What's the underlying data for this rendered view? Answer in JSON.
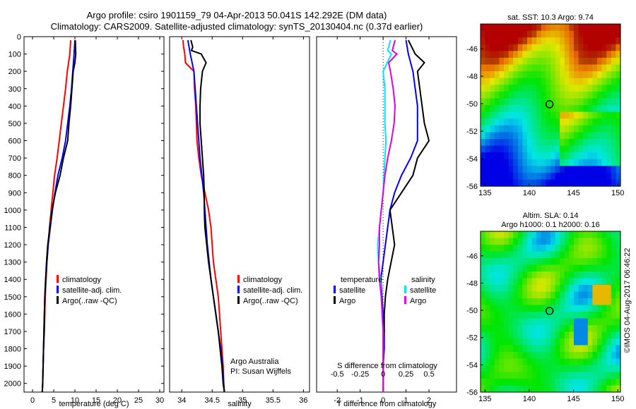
{
  "title": {
    "line1": "Argo profile: csiro 1901159_79 04-Apr-2013 50.041S 142.292E (DM data)",
    "line2": "Climatology: CARS2009. Satellite-adjusted climatology: synTS_20130404.nc (0.37d earlier)"
  },
  "colors": {
    "climatology": "#ff0000",
    "satellite": "#0000ff",
    "argo": "#000000",
    "sat_salinity": "#00e5ff",
    "argo_salinity": "#e000e0"
  },
  "credit": "©IMOS 04-Aug-2017 06:46:22",
  "chart_data": [
    {
      "id": "temperature",
      "type": "line",
      "xlabel": "temperature (deg C)",
      "ylabel": "",
      "xlim": [
        -2,
        31
      ],
      "ylim": [
        2050,
        0
      ],
      "xticks": [
        0,
        5,
        10,
        15,
        20,
        25,
        30
      ],
      "yticks": [
        0,
        100,
        200,
        300,
        400,
        500,
        600,
        700,
        800,
        900,
        1000,
        1100,
        1200,
        1300,
        1400,
        1500,
        1600,
        1700,
        1800,
        1900,
        2000
      ],
      "legend": [
        "climatology",
        "satellite-adj. clim.",
        "Argo(..raw -QC)"
      ],
      "legend_position": "lower-center",
      "series": [
        {
          "name": "climatology",
          "color": "#ff0000",
          "depth": [
            20,
            100,
            200,
            300,
            400,
            500,
            600,
            700,
            800,
            900,
            1000,
            1100,
            1200,
            1300,
            1400,
            1500,
            1600,
            1700,
            1800,
            1900,
            2000,
            2050
          ],
          "values": [
            9.0,
            8.8,
            8.2,
            7.8,
            7.3,
            6.8,
            6.3,
            5.8,
            5.2,
            4.8,
            4.4,
            4.0,
            3.7,
            3.4,
            3.2,
            3.0,
            2.9,
            2.8,
            2.6,
            2.5,
            2.4,
            2.3
          ]
        },
        {
          "name": "satellite-adj. clim.",
          "color": "#0000ff",
          "depth": [
            20,
            100,
            200,
            300,
            400,
            500,
            600,
            700,
            800,
            900,
            1000,
            1100,
            1200,
            1300,
            1400,
            1500,
            1600,
            1700,
            1800,
            1900,
            2000,
            2050
          ],
          "values": [
            10.0,
            9.8,
            9.5,
            9.2,
            8.8,
            8.3,
            7.8,
            7.0,
            6.0,
            5.3,
            4.7,
            4.2,
            3.7,
            3.4,
            3.1,
            2.9,
            2.8,
            2.7,
            2.6,
            2.5,
            2.4,
            2.3
          ]
        },
        {
          "name": "Argo(..raw -QC)",
          "color": "#000000",
          "depth": [
            20,
            100,
            150,
            200,
            300,
            400,
            500,
            600,
            700,
            800,
            900,
            1000,
            1100,
            1200,
            1300,
            1400,
            1500,
            1600,
            1700,
            1800,
            1900,
            2000,
            2050
          ],
          "values": [
            10.1,
            10.2,
            10.0,
            9.6,
            9.3,
            9.0,
            8.6,
            8.3,
            7.3,
            6.5,
            5.4,
            4.6,
            4.1,
            3.6,
            3.3,
            3.1,
            2.9,
            2.8,
            2.7,
            2.6,
            2.5,
            2.4,
            2.3
          ]
        }
      ]
    },
    {
      "id": "salinity",
      "type": "line",
      "xlabel": "salinity",
      "ylabel": "",
      "xlim": [
        33.8,
        36.1
      ],
      "ylim": [
        2050,
        0
      ],
      "xticks": [
        34,
        34.5,
        35,
        35.5,
        36
      ],
      "legend": [
        "climatology",
        "satellite-adj. clim.",
        "Argo(..raw -QC)"
      ],
      "legend_position": "lower-center",
      "annotation": [
        "Argo Australia",
        "PI: Susan Wijffels"
      ],
      "series": [
        {
          "name": "climatology",
          "color": "#ff0000",
          "depth": [
            20,
            60,
            100,
            150,
            200,
            300,
            400,
            500,
            600,
            700,
            800,
            900,
            1000,
            1100,
            1200,
            1300,
            1400,
            1500,
            1600,
            1700,
            1800,
            1900,
            2000,
            2050
          ],
          "values": [
            34.02,
            34.03,
            34.05,
            34.06,
            34.2,
            34.21,
            34.23,
            34.24,
            34.25,
            34.28,
            34.32,
            34.38,
            34.44,
            34.48,
            34.5,
            34.52,
            34.56,
            34.6,
            34.62,
            34.64,
            34.66,
            34.68,
            34.69,
            34.7
          ]
        },
        {
          "name": "satellite-adj. clim.",
          "color": "#0000ff",
          "depth": [
            20,
            60,
            100,
            150,
            200,
            300,
            400,
            500,
            600,
            700,
            800,
            900,
            1000,
            1100,
            1200,
            1300,
            1400,
            1500,
            1600,
            1700,
            1800,
            1900,
            2000,
            2050
          ],
          "values": [
            34.1,
            34.12,
            34.14,
            34.17,
            34.2,
            34.22,
            34.24,
            34.26,
            34.28,
            34.3,
            34.33,
            34.36,
            34.38,
            34.4,
            34.42,
            34.45,
            34.48,
            34.52,
            34.56,
            34.6,
            34.64,
            34.67,
            34.69,
            34.7
          ]
        },
        {
          "name": "Argo(..raw -QC)",
          "color": "#000000",
          "depth": [
            20,
            60,
            80,
            100,
            150,
            200,
            300,
            400,
            500,
            600,
            700,
            800,
            900,
            1000,
            1100,
            1200,
            1300,
            1400,
            1500,
            1600,
            1700,
            1800,
            1900,
            2000,
            2050
          ],
          "values": [
            34.15,
            34.18,
            34.16,
            34.32,
            34.4,
            34.34,
            34.31,
            34.3,
            34.3,
            34.32,
            34.34,
            34.36,
            34.37,
            34.37,
            34.38,
            34.41,
            34.44,
            34.48,
            34.52,
            34.56,
            34.6,
            34.63,
            34.66,
            34.68,
            34.7
          ]
        }
      ]
    },
    {
      "id": "difference",
      "type": "line",
      "xlabel": "T difference from climatology",
      "xlabel_top": "S difference from climatology",
      "xlim": [
        -2.9,
        3.2
      ],
      "ylim": [
        2050,
        0
      ],
      "xticks": [
        -2,
        -1,
        0,
        1,
        2
      ],
      "xticks_s": [
        -0.5,
        -0.25,
        0,
        0.25,
        0.5
      ],
      "legend": {
        "temperature": "temperature",
        "salinity": "salinity",
        "satellite": "satellite",
        "argo": "Argo"
      },
      "legend_position": "lower-center",
      "series": [
        {
          "name": "T satellite",
          "color": "#0000ff",
          "depth": [
            20,
            100,
            200,
            300,
            400,
            500,
            600,
            700,
            800,
            900,
            1000,
            1100,
            1200,
            1300,
            1400,
            1500,
            1600,
            1700,
            1800,
            1900,
            2000,
            2050
          ],
          "values": [
            1.0,
            1.1,
            1.3,
            1.4,
            1.5,
            1.5,
            1.5,
            1.2,
            0.8,
            0.5,
            0.3,
            0.2,
            0.1,
            0.0,
            -0.1,
            -0.05,
            0.0,
            0.05,
            0.05,
            0.0,
            0.0,
            0.0
          ]
        },
        {
          "name": "T Argo",
          "color": "#000000",
          "depth": [
            20,
            100,
            150,
            200,
            300,
            400,
            500,
            600,
            700,
            800,
            900,
            1000,
            1100,
            1200,
            1300,
            1400,
            1500,
            1600,
            1700,
            1800,
            1900,
            2000,
            2050
          ],
          "values": [
            1.1,
            1.4,
            1.8,
            1.5,
            1.6,
            1.7,
            1.8,
            2.0,
            1.5,
            1.3,
            0.8,
            0.3,
            0.4,
            0.5,
            0.35,
            0.2,
            0.1,
            0.05,
            0.05,
            0.0,
            0.0,
            0.0,
            0.0
          ]
        },
        {
          "name": "S satellite",
          "color": "#00e5ff",
          "depth": [
            20,
            80,
            100,
            200,
            300,
            400,
            500,
            600,
            700,
            800,
            900,
            1000,
            1100,
            1200,
            1300,
            1400,
            1500,
            1600,
            1700,
            1800,
            1900,
            2000,
            2050
          ],
          "values": [
            0.08,
            0.05,
            0.09,
            0.0,
            0.02,
            0.02,
            0.02,
            0.03,
            0.02,
            0.01,
            0.0,
            -0.02,
            -0.04,
            -0.06,
            -0.05,
            -0.03,
            -0.02,
            -0.01,
            0.0,
            0.0,
            0.0,
            0.0,
            0.0
          ]
        },
        {
          "name": "S Argo",
          "color": "#e000e0",
          "depth": [
            20,
            80,
            100,
            150,
            200,
            300,
            400,
            500,
            600,
            700,
            800,
            900,
            1000,
            1100,
            1200,
            1300,
            1400,
            1500,
            1600,
            1700,
            1800,
            1900,
            2000,
            2050
          ],
          "values": [
            0.13,
            0.1,
            0.15,
            0.06,
            0.08,
            0.11,
            0.13,
            0.12,
            0.09,
            0.05,
            0.02,
            0.0,
            -0.02,
            -0.04,
            -0.04,
            -0.05,
            -0.04,
            -0.02,
            -0.01,
            0.0,
            0.0,
            0.0,
            0.0,
            0.0
          ]
        }
      ]
    },
    {
      "id": "sst-map",
      "type": "heatmap",
      "title": "sat. SST: 10.3 Argo: 9.74",
      "xlim": [
        134.5,
        150.3
      ],
      "ylim": [
        -56,
        -44.2
      ],
      "xticks": [
        135,
        140,
        145,
        150
      ],
      "yticks": [
        -46,
        -48,
        -50,
        -52,
        -54,
        -56
      ],
      "marker": {
        "lon": 142.29,
        "lat": -50.04
      }
    },
    {
      "id": "sla-map",
      "type": "heatmap",
      "title": [
        "Altim. SLA: 0.14",
        "Argo h1000: 0.1 h2000: 0.16"
      ],
      "xlim": [
        134.5,
        150.3
      ],
      "ylim": [
        -56,
        -44.2
      ],
      "xticks": [
        135,
        140,
        145,
        150
      ],
      "yticks": [
        -46,
        -48,
        -50,
        -52,
        -54,
        -56
      ],
      "marker": {
        "lon": 142.29,
        "lat": -50.04
      }
    }
  ]
}
